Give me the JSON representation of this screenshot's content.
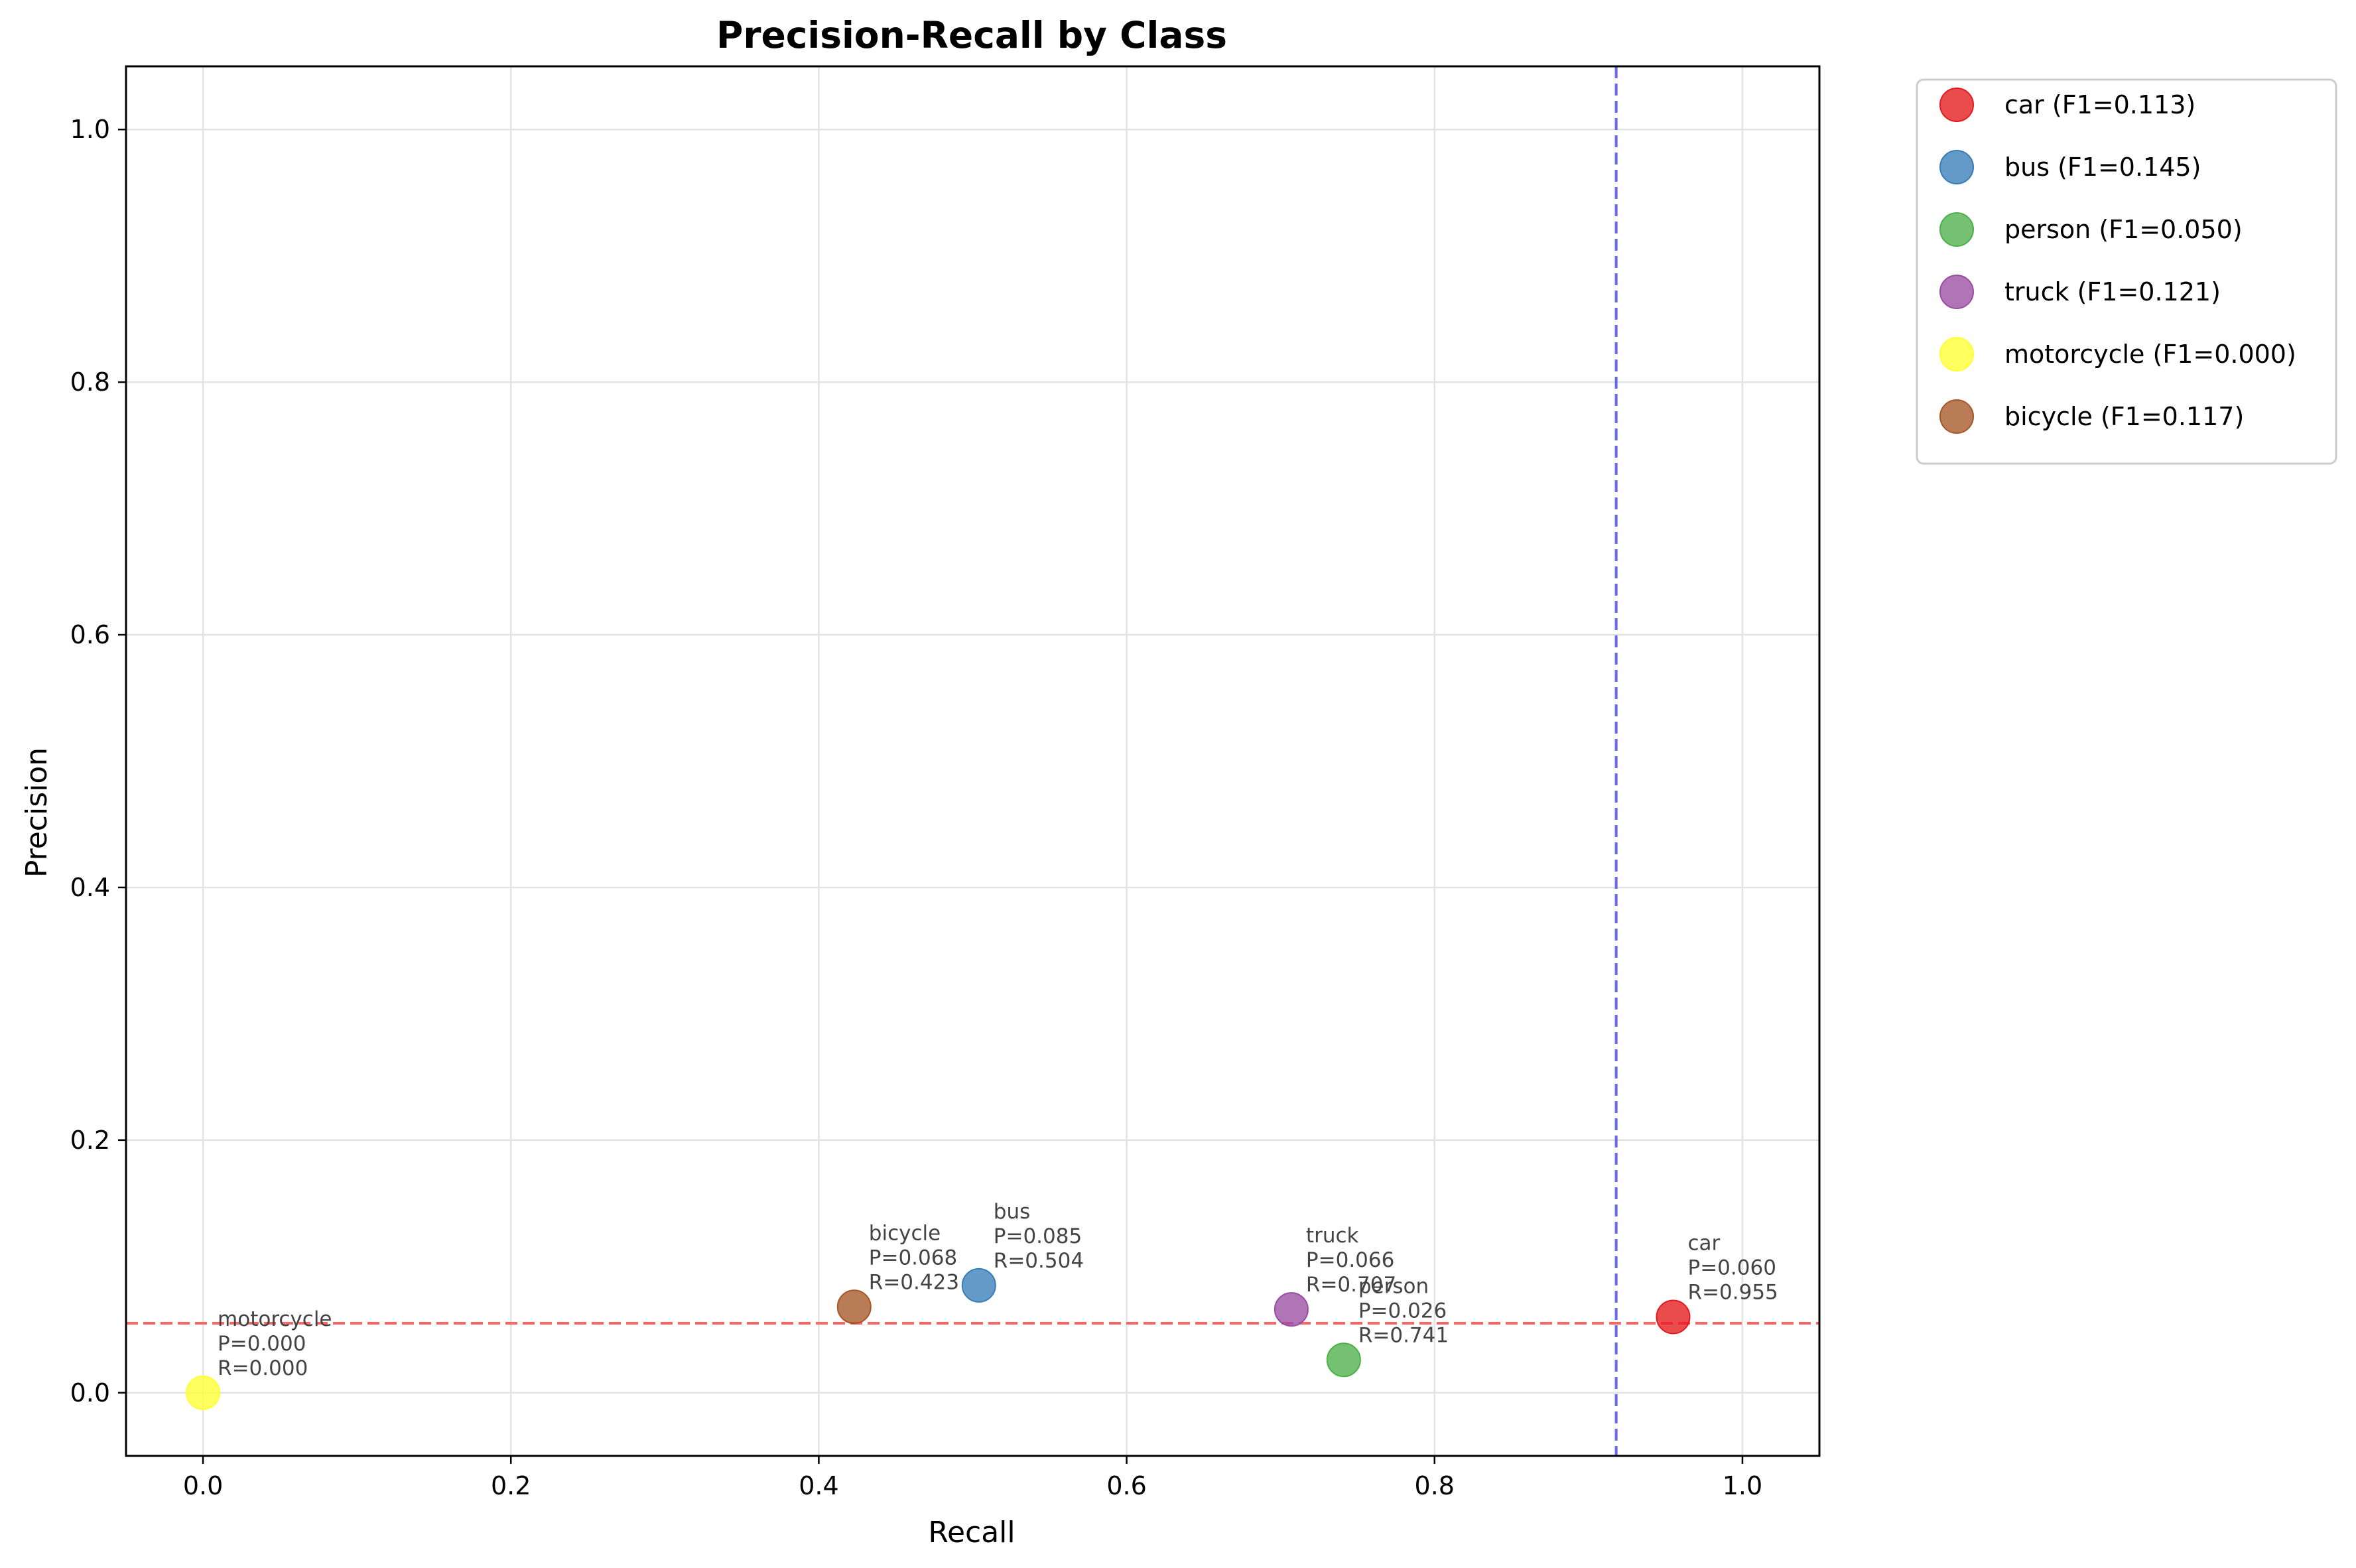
{
  "chart_data": {
    "type": "scatter",
    "title": "Precision-Recall by Class",
    "xlabel": "Recall",
    "ylabel": "Precision",
    "xlim": [
      -0.05,
      1.05
    ],
    "ylim": [
      -0.05,
      1.05
    ],
    "xticks": [
      0.0,
      0.2,
      0.4,
      0.6,
      0.8,
      1.0
    ],
    "xtick_labels": [
      "0.0",
      "0.2",
      "0.4",
      "0.6",
      "0.8",
      "1.0"
    ],
    "yticks": [
      0.0,
      0.2,
      0.4,
      0.6,
      0.8,
      1.0
    ],
    "ytick_labels": [
      "0.0",
      "0.2",
      "0.4",
      "0.6",
      "0.8",
      "1.0"
    ],
    "grid": true,
    "legend_position": "outside-top-right",
    "reference_lines": {
      "horizontal_precision": 0.055,
      "horizontal_color": "#ff6666",
      "vertical_recall": 0.918,
      "vertical_color": "#6666ee"
    },
    "series": [
      {
        "name": "car (F1=0.113)",
        "color": "#e41a1c",
        "x": 0.955,
        "y": 0.06,
        "annotation": [
          "car",
          "P=0.060",
          "R=0.955"
        ]
      },
      {
        "name": "bus (F1=0.145)",
        "color": "#377eb8",
        "x": 0.504,
        "y": 0.085,
        "annotation": [
          "bus",
          "P=0.085",
          "R=0.504"
        ]
      },
      {
        "name": "person (F1=0.050)",
        "color": "#4daf4a",
        "x": 0.741,
        "y": 0.026,
        "annotation": [
          "person",
          "P=0.026",
          "R=0.741"
        ]
      },
      {
        "name": "truck (F1=0.121)",
        "color": "#984ea3",
        "x": 0.707,
        "y": 0.066,
        "annotation": [
          "truck",
          "P=0.066",
          "R=0.707"
        ]
      },
      {
        "name": "motorcycle (F1=0.000)",
        "color": "#ffff33",
        "x": 0.0,
        "y": 0.0,
        "annotation": [
          "motorcycle",
          "P=0.000",
          "R=0.000"
        ]
      },
      {
        "name": "bicycle (F1=0.117)",
        "color": "#a65628",
        "x": 0.423,
        "y": 0.068,
        "annotation": [
          "bicycle",
          "P=0.068",
          "R=0.423"
        ]
      }
    ]
  }
}
